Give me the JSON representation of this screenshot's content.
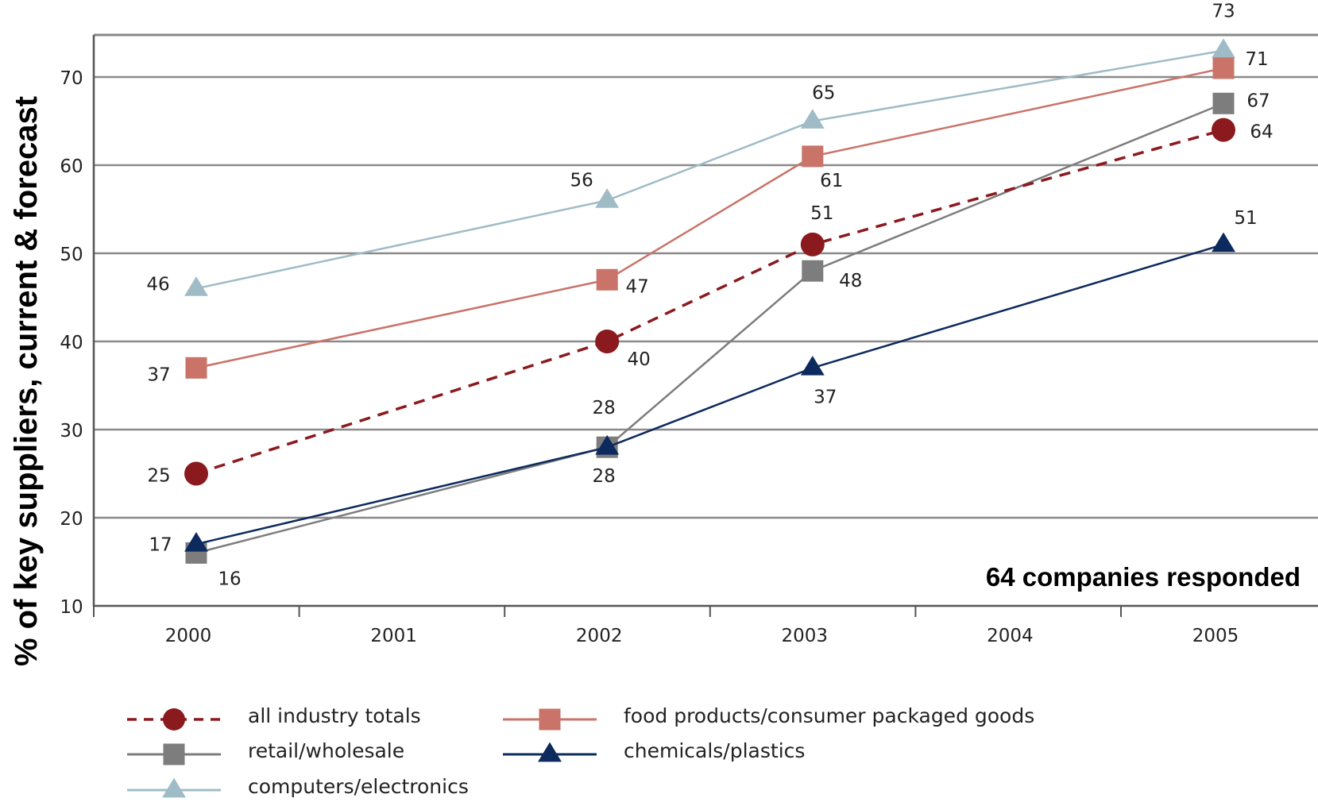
{
  "chart_data": {
    "type": "line",
    "ylabel": "% of key suppliers, current & forecast",
    "xlabel": "",
    "annotation": "64 companies responded",
    "x_ticks": [
      "2000",
      "2001",
      "2002",
      "2003",
      "2004",
      "2005"
    ],
    "y_ticks": [
      "10",
      "20",
      "30",
      "40",
      "50",
      "60",
      "70"
    ],
    "ylim": [
      10,
      73
    ],
    "grid": "horizontal",
    "legend_position": "bottom",
    "series": [
      {
        "name": "all industry totals",
        "color": "#8b1a1f",
        "line_style": "dashed",
        "marker": "circle",
        "x": [
          2000,
          2002,
          2003,
          2005
        ],
        "values": [
          25,
          40,
          51,
          64
        ],
        "labels": [
          "25",
          "40",
          "51",
          "64"
        ]
      },
      {
        "name": "food products/consumer packaged goods",
        "color": "#c97369",
        "line_style": "solid",
        "marker": "square",
        "x": [
          2000,
          2002,
          2003,
          2005
        ],
        "values": [
          37,
          47,
          61,
          71
        ],
        "labels": [
          "37",
          "47",
          "61",
          "71"
        ]
      },
      {
        "name": "retail/wholesale",
        "color": "#7d7d7d",
        "line_style": "solid",
        "marker": "square",
        "x": [
          2000,
          2002,
          2003,
          2005
        ],
        "values": [
          16,
          28,
          48,
          67
        ],
        "labels": [
          "16",
          "28",
          "48",
          "67"
        ]
      },
      {
        "name": "chemicals/plastics",
        "color": "#0d2a5e",
        "line_style": "solid",
        "marker": "triangle",
        "x": [
          2000,
          2002,
          2003,
          2005
        ],
        "values": [
          17,
          28,
          37,
          51
        ],
        "labels": [
          "17",
          "28",
          "37",
          "51"
        ]
      },
      {
        "name": "computers/electronics",
        "color": "#9fbcc6",
        "line_style": "solid",
        "marker": "triangle",
        "x": [
          2000,
          2002,
          2003,
          2005
        ],
        "values": [
          46,
          56,
          65,
          73
        ],
        "labels": [
          "46",
          "56",
          "65",
          "73"
        ]
      }
    ]
  }
}
